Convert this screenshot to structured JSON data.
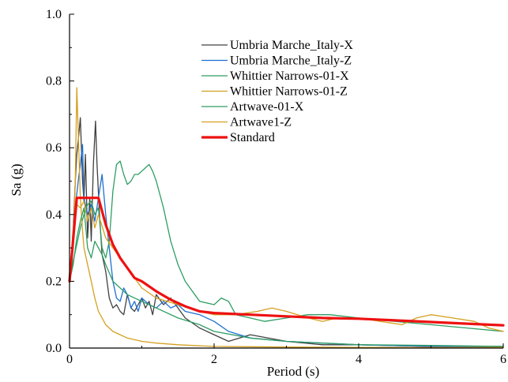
{
  "chart_data": {
    "type": "line",
    "title": "",
    "xlabel": "Period (s)",
    "ylabel": "Sa (g)",
    "xlim": [
      0,
      6
    ],
    "ylim": [
      0,
      1.0
    ],
    "x_ticks": [
      "0",
      "2",
      "4",
      "6"
    ],
    "y_ticks": [
      "0.0",
      "0.2",
      "0.4",
      "0.6",
      "0.8",
      "1.0"
    ],
    "legend_position": "top-right",
    "grid": false,
    "series": [
      {
        "name": "Umbria Marche_Italy-X",
        "color": "#404040",
        "width": 1.3,
        "x": [
          0,
          0.05,
          0.08,
          0.1,
          0.12,
          0.15,
          0.18,
          0.2,
          0.22,
          0.25,
          0.28,
          0.3,
          0.33,
          0.36,
          0.38,
          0.42,
          0.45,
          0.5,
          0.55,
          0.6,
          0.65,
          0.7,
          0.75,
          0.8,
          0.85,
          0.9,
          0.95,
          1.0,
          1.05,
          1.1,
          1.15,
          1.2,
          1.3,
          1.4,
          1.5,
          1.6,
          1.8,
          2.0,
          2.2,
          2.5,
          3.0,
          3.5,
          4.0,
          5.0,
          6.0
        ],
        "y": [
          0.2,
          0.35,
          0.5,
          0.58,
          0.62,
          0.69,
          0.5,
          0.44,
          0.58,
          0.33,
          0.45,
          0.32,
          0.55,
          0.68,
          0.55,
          0.38,
          0.28,
          0.23,
          0.15,
          0.12,
          0.13,
          0.11,
          0.1,
          0.16,
          0.12,
          0.11,
          0.13,
          0.15,
          0.12,
          0.14,
          0.1,
          0.16,
          0.13,
          0.15,
          0.12,
          0.09,
          0.06,
          0.04,
          0.02,
          0.04,
          0.02,
          0.01,
          0.01,
          0.005,
          0.005
        ]
      },
      {
        "name": "Umbria Marche_Italy-Z",
        "color": "#1f6fd0",
        "width": 1.3,
        "x": [
          0,
          0.05,
          0.08,
          0.12,
          0.15,
          0.18,
          0.2,
          0.25,
          0.3,
          0.35,
          0.4,
          0.45,
          0.5,
          0.55,
          0.6,
          0.65,
          0.7,
          0.75,
          0.8,
          0.85,
          0.9,
          0.95,
          1.0,
          1.1,
          1.2,
          1.3,
          1.4,
          1.5,
          1.6,
          1.8,
          2.0,
          2.2,
          2.5,
          3.0,
          3.5,
          4.0,
          5.0,
          6.0
        ],
        "y": [
          0.2,
          0.3,
          0.42,
          0.5,
          0.55,
          0.61,
          0.45,
          0.4,
          0.43,
          0.38,
          0.45,
          0.52,
          0.4,
          0.3,
          0.2,
          0.15,
          0.14,
          0.18,
          0.16,
          0.12,
          0.14,
          0.11,
          0.15,
          0.13,
          0.12,
          0.14,
          0.12,
          0.13,
          0.11,
          0.1,
          0.08,
          0.05,
          0.03,
          0.02,
          0.015,
          0.01,
          0.005,
          0.005
        ]
      },
      {
        "name": "Whittier Narrows-01-X",
        "color": "#2e9e62",
        "width": 1.3,
        "x": [
          0,
          0.05,
          0.1,
          0.15,
          0.2,
          0.25,
          0.3,
          0.35,
          0.4,
          0.45,
          0.5,
          0.55,
          0.6,
          0.65,
          0.7,
          0.75,
          0.8,
          0.85,
          0.9,
          0.95,
          1.0,
          1.05,
          1.1,
          1.15,
          1.2,
          1.3,
          1.4,
          1.5,
          1.6,
          1.8,
          2.0,
          2.1,
          2.2,
          2.3,
          2.5,
          2.7,
          3.0,
          3.3,
          3.6,
          4.0,
          4.5,
          5.0,
          5.5,
          6.0
        ],
        "y": [
          0.2,
          0.26,
          0.31,
          0.36,
          0.4,
          0.43,
          0.44,
          0.4,
          0.42,
          0.3,
          0.27,
          0.32,
          0.47,
          0.55,
          0.56,
          0.52,
          0.49,
          0.5,
          0.52,
          0.52,
          0.53,
          0.54,
          0.55,
          0.53,
          0.5,
          0.42,
          0.32,
          0.25,
          0.2,
          0.14,
          0.13,
          0.15,
          0.14,
          0.1,
          0.09,
          0.08,
          0.09,
          0.1,
          0.1,
          0.09,
          0.08,
          0.07,
          0.06,
          0.05
        ]
      },
      {
        "name": "Whittier Narrows-01-Z",
        "color": "#d4a020",
        "width": 1.3,
        "x": [
          0,
          0.05,
          0.08,
          0.1,
          0.12,
          0.15,
          0.18,
          0.2,
          0.22,
          0.25,
          0.3,
          0.35,
          0.4,
          0.45,
          0.5,
          0.6,
          0.7,
          0.8,
          1.0,
          1.2,
          1.5,
          2.0,
          2.5,
          3.0,
          4.0,
          5.0,
          6.0
        ],
        "y": [
          0.2,
          0.3,
          0.5,
          0.78,
          0.65,
          0.45,
          0.35,
          0.3,
          0.28,
          0.25,
          0.2,
          0.15,
          0.11,
          0.09,
          0.07,
          0.05,
          0.04,
          0.03,
          0.02,
          0.015,
          0.01,
          0.005,
          0.004,
          0.003,
          0.002,
          0.002,
          0.002
        ]
      },
      {
        "name": "Artwave-01-X",
        "color": "#2e9e62",
        "width": 1.3,
        "x": [
          0,
          0.05,
          0.1,
          0.15,
          0.2,
          0.25,
          0.3,
          0.35,
          0.4,
          0.45,
          0.5,
          0.6,
          0.8,
          1.0,
          1.2,
          1.5,
          1.8,
          2.0,
          2.5,
          3.0,
          4.0,
          5.0,
          6.0
        ],
        "y": [
          0.2,
          0.25,
          0.33,
          0.38,
          0.42,
          0.3,
          0.27,
          0.32,
          0.3,
          0.28,
          0.25,
          0.2,
          0.16,
          0.14,
          0.12,
          0.09,
          0.07,
          0.05,
          0.03,
          0.02,
          0.01,
          0.008,
          0.005
        ]
      },
      {
        "name": "Artwave1-Z",
        "color": "#d4a020",
        "width": 1.3,
        "x": [
          0,
          0.05,
          0.1,
          0.15,
          0.2,
          0.25,
          0.3,
          0.35,
          0.4,
          0.5,
          0.6,
          0.8,
          1.0,
          1.2,
          1.5,
          1.8,
          2.0,
          2.3,
          2.6,
          2.8,
          3.0,
          3.3,
          3.5,
          3.7,
          4.0,
          4.3,
          4.6,
          4.8,
          5.0,
          5.3,
          5.6,
          5.8,
          6.0
        ],
        "y": [
          0.2,
          0.36,
          0.43,
          0.42,
          0.44,
          0.38,
          0.42,
          0.36,
          0.4,
          0.33,
          0.3,
          0.24,
          0.18,
          0.15,
          0.13,
          0.11,
          0.1,
          0.1,
          0.11,
          0.12,
          0.11,
          0.09,
          0.08,
          0.09,
          0.09,
          0.08,
          0.07,
          0.09,
          0.1,
          0.09,
          0.08,
          0.06,
          0.05
        ]
      },
      {
        "name": "Standard",
        "color": "#ee1111",
        "width": 3.2,
        "x": [
          0,
          0.1,
          0.4,
          0.5,
          0.6,
          0.7,
          0.8,
          0.9,
          1.0,
          1.2,
          1.4,
          1.6,
          1.8,
          2.0,
          2.5,
          3.0,
          3.5,
          4.0,
          4.5,
          5.0,
          5.5,
          6.0
        ],
        "y": [
          0.2,
          0.45,
          0.45,
          0.37,
          0.31,
          0.27,
          0.24,
          0.21,
          0.2,
          0.17,
          0.145,
          0.125,
          0.11,
          0.105,
          0.1,
          0.095,
          0.09,
          0.088,
          0.083,
          0.078,
          0.073,
          0.068
        ]
      }
    ]
  }
}
